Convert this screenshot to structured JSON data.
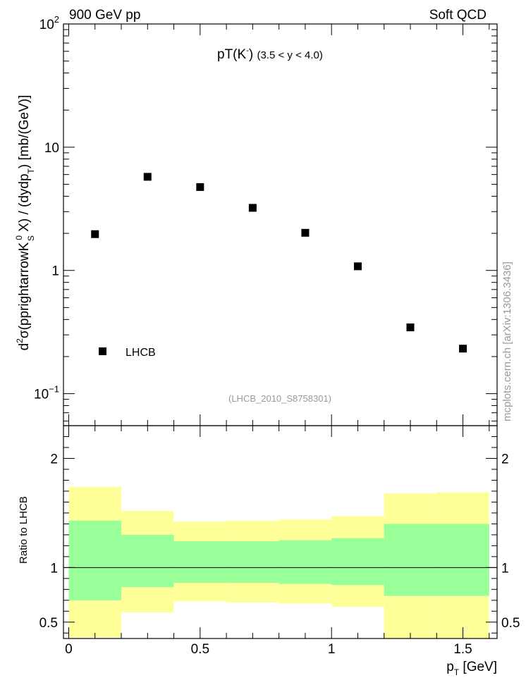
{
  "header": {
    "left": "900 GeV pp",
    "right": "Soft QCD"
  },
  "side_label": "mcplots.cern.ch [arXiv:1306.3436]",
  "chart_data": [
    {
      "type": "scatter",
      "title": "pT(K¯) (3.5 < y < 4.0)",
      "title_main": "pT(K",
      "title_sup": "-",
      "title_close": ")",
      "title_range": "(3.5 < y < 4.0)",
      "ylabel": "d²σ(pprightarrowK⁰S X) / (dydpT) [mb/(GeV)]",
      "ylabel_parts": {
        "a": "d",
        "a_sup": "2",
        "b": "σ(pprightarrowK",
        "b_sup": "0",
        "b_sub": "S",
        "c": " X) / (dydp",
        "c_sub": "T",
        "d": ") [mb/(GeV)]"
      },
      "yscale": "log",
      "ylim": [
        0.055,
        100
      ],
      "xlim": [
        -0.02,
        1.63
      ],
      "y_ticks": [
        {
          "value": 0.1,
          "base": "10",
          "exp": "−1"
        },
        {
          "value": 1,
          "label": "1"
        },
        {
          "value": 10,
          "label": "10"
        },
        {
          "value": 100,
          "base": "10",
          "exp": "2"
        }
      ],
      "series": [
        {
          "name": "LHCB",
          "x": [
            0.1,
            0.3,
            0.5,
            0.7,
            0.9,
            1.1,
            1.3,
            1.5
          ],
          "y": [
            1.97,
            5.75,
            4.75,
            3.22,
            2.02,
            1.08,
            0.345,
            0.232
          ],
          "color": "#000000",
          "marker": "square"
        }
      ],
      "legend": {
        "position": "bottom-left",
        "label": "LHCB"
      },
      "annotation": "(LHCB_2010_S8758301)"
    },
    {
      "type": "area",
      "ylabel": "Ratio to LHCB",
      "xlabel": "pT [GeV]",
      "xlabel_main": "p",
      "xlabel_sub": "T",
      "xlabel_unit": " [GeV]",
      "xlim": [
        -0.02,
        1.63
      ],
      "ylim": [
        0.35,
        2.3
      ],
      "x_ticks": [
        {
          "value": 0,
          "label": "0"
        },
        {
          "value": 0.5,
          "label": "0.5"
        },
        {
          "value": 1,
          "label": "1"
        },
        {
          "value": 1.5,
          "label": "1.5"
        }
      ],
      "y_ticks": [
        {
          "value": 0.5,
          "label": "0.5"
        },
        {
          "value": 1,
          "label": "1"
        },
        {
          "value": 2,
          "label": "2"
        }
      ],
      "reference_line": 1,
      "bin_edges": [
        0,
        0.2,
        0.4,
        0.6,
        0.8,
        1.0,
        1.2,
        1.4,
        1.6
      ],
      "outer_band": {
        "color": "#ffff99",
        "low": [
          0.36,
          0.59,
          0.69,
          0.68,
          0.67,
          0.64,
          0.35,
          0.35
        ],
        "high": [
          1.74,
          1.52,
          1.42,
          1.43,
          1.44,
          1.47,
          1.68,
          1.69
        ]
      },
      "inner_band": {
        "color": "#99ff99",
        "low": [
          0.7,
          0.82,
          0.86,
          0.86,
          0.85,
          0.84,
          0.74,
          0.74
        ],
        "high": [
          1.43,
          1.3,
          1.24,
          1.24,
          1.25,
          1.27,
          1.4,
          1.4
        ]
      }
    }
  ]
}
